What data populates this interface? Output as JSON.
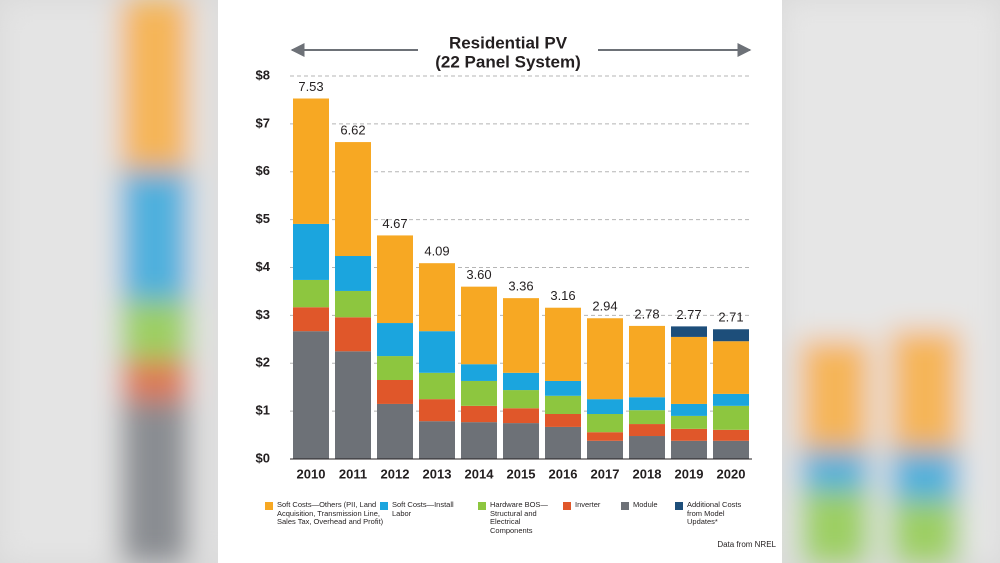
{
  "chart_data": {
    "type": "stacked_bar",
    "title": "Residential PV",
    "subtitle": "(22 Panel System)",
    "source": "Data from NREL",
    "categories": [
      "2010",
      "2011",
      "2012",
      "2013",
      "2014",
      "2015",
      "2016",
      "2017",
      "2018",
      "2019",
      "2020"
    ],
    "series": [
      {
        "name": "Module",
        "color": "#6d7177",
        "values": [
          2.67,
          2.25,
          1.15,
          0.79,
          0.77,
          0.75,
          0.67,
          0.38,
          0.48,
          0.38,
          0.38
        ]
      },
      {
        "name": "Inverter",
        "color": "#e0572a",
        "values": [
          0.5,
          0.71,
          0.5,
          0.46,
          0.34,
          0.31,
          0.27,
          0.18,
          0.25,
          0.25,
          0.23
        ]
      },
      {
        "name": "Hardware BOS—Structural and Electrical Components",
        "color": "#8dc63f",
        "values": [
          0.57,
          0.55,
          0.5,
          0.55,
          0.52,
          0.38,
          0.38,
          0.38,
          0.29,
          0.27,
          0.5
        ]
      },
      {
        "name": "Soft Costs—Install Labor",
        "color": "#1ba5de",
        "values": [
          1.17,
          0.73,
          0.69,
          0.87,
          0.35,
          0.36,
          0.31,
          0.31,
          0.27,
          0.25,
          0.25
        ]
      },
      {
        "name": "Soft Costs—Others (PII, Land Acquisition, Transmission Line, Sales Tax, Overhead and Profit)",
        "color": "#f7a823",
        "values": [
          2.62,
          2.38,
          1.83,
          1.42,
          1.62,
          1.56,
          1.53,
          1.69,
          1.49,
          1.4,
          1.1
        ]
      },
      {
        "name": "Additional Costs from Model Updates*",
        "color": "#1d4e7a",
        "values": [
          null,
          null,
          null,
          null,
          null,
          null,
          null,
          null,
          null,
          0.22,
          0.25
        ]
      }
    ],
    "totals": [
      7.53,
      6.62,
      4.67,
      4.09,
      3.6,
      3.36,
      3.16,
      2.94,
      2.78,
      2.77,
      2.71
    ],
    "total_labels": [
      "7.53",
      "6.62",
      "4.67",
      "4.09",
      "3.60",
      "3.36",
      "3.16",
      "2.94",
      "2.78",
      "2.77",
      "2.71"
    ],
    "ylim": [
      0,
      8
    ],
    "yticks": [
      {
        "value": 0,
        "label": "$0"
      },
      {
        "value": 1,
        "label": "$1"
      },
      {
        "value": 2,
        "label": "$2"
      },
      {
        "value": 3,
        "label": "$3"
      },
      {
        "value": 4,
        "label": "$4"
      },
      {
        "value": 5,
        "label": "$5"
      },
      {
        "value": 6,
        "label": "$6"
      },
      {
        "value": 7,
        "label": "$7"
      },
      {
        "value": 8,
        "label": "$8"
      }
    ],
    "grid": true
  }
}
